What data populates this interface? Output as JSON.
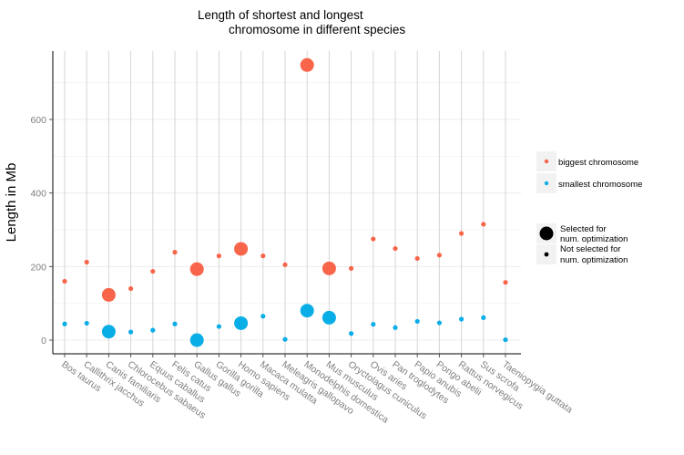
{
  "chart_data": {
    "type": "scatter",
    "title_lines": [
      "Length of shortest and longest",
      "chromosome in different species"
    ],
    "xlabel": "",
    "ylabel": "Length in Mb",
    "ylim": [
      -35,
      770
    ],
    "yticks": [
      0,
      200,
      400,
      600
    ],
    "grid": true,
    "categories": [
      "Bos taurus",
      "Callithrix jacchus",
      "Canis familiaris",
      "Chlorocebus sabaeus",
      "Equus caballus",
      "Felis catus",
      "Gallus gallus",
      "Gorilla gorilla",
      "Homo sapiens",
      "Macaca mulatta",
      "Meleagris gallopavo",
      "Monodelphis domestica",
      "Mus musculus",
      "Oryctolagus cuniculus",
      "Ovis aries",
      "Pan troglodytes",
      "Papio anubis",
      "Pongo abelii",
      "Rattus norvegicus",
      "Sus scrofa",
      "Taeniopygia guttata"
    ],
    "series": [
      {
        "name": "biggest chromosome",
        "color": "#f8654a",
        "values": [
          160,
          212,
          123,
          140,
          187,
          239,
          193,
          229,
          248,
          229,
          205,
          748,
          195,
          195,
          275,
          249,
          222,
          231,
          290,
          315,
          157
        ]
      },
      {
        "name": "smallest chromosome",
        "color": "#0aaee7",
        "values": [
          44,
          46,
          23,
          22,
          27,
          44,
          0,
          37,
          46,
          65,
          2,
          80,
          61,
          18,
          43,
          34,
          51,
          47,
          57,
          61,
          1
        ]
      }
    ],
    "selected": [
      false,
      false,
      true,
      false,
      false,
      false,
      true,
      false,
      true,
      false,
      false,
      true,
      true,
      false,
      false,
      false,
      false,
      false,
      false,
      false,
      false
    ],
    "size_legend": {
      "selected_label_lines": [
        "Selected for",
        "num. optimization"
      ],
      "not_selected_label_lines": [
        "Not selected for",
        "num. optimization"
      ]
    },
    "legend_position": "right"
  }
}
